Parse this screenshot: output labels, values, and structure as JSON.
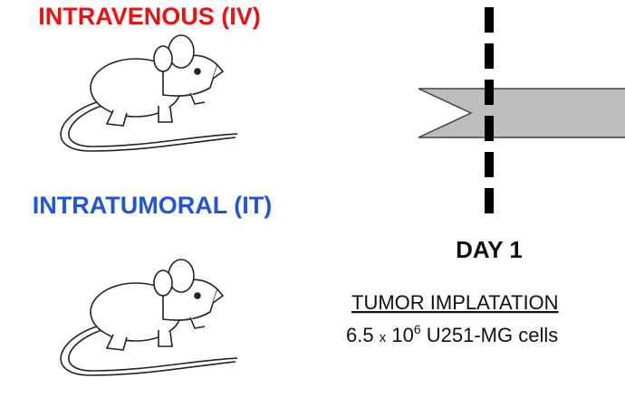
{
  "groups": [
    {
      "label": "INTRAVENOUS (IV)"
    },
    {
      "label": "INTRATUMORAL (IT)"
    }
  ],
  "timeline": {
    "day": "DAY 1",
    "event": "TUMOR IMPLATATION",
    "dose": {
      "amount": "6.5",
      "times": "x",
      "base": "10",
      "exponent": "6",
      "cells": "U251-MG cells"
    }
  }
}
